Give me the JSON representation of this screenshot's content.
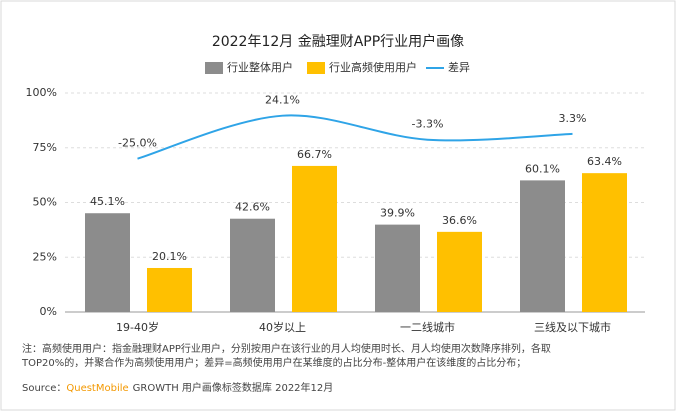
{
  "chart_data": {
    "type": "bar",
    "title": "2022年12月 金融理财APP行业用户画像",
    "categories": [
      "19-40岁",
      "40岁以上",
      "一二线城市",
      "三线及以下城市"
    ],
    "series": [
      {
        "name": "行业整体用户",
        "color": "#8c8c8c",
        "values": [
          45.1,
          42.6,
          39.9,
          60.1
        ],
        "value_labels": [
          "45.1%",
          "42.6%",
          "39.9%",
          "60.1%"
        ]
      },
      {
        "name": "行业高频使用用户",
        "color": "#ffc000",
        "values": [
          20.1,
          66.7,
          36.6,
          63.4
        ],
        "value_labels": [
          "20.1%",
          "66.7%",
          "36.6%",
          "63.4%"
        ]
      },
      {
        "name": "差异",
        "type": "line",
        "axis": "y2",
        "color": "#2fa4e7",
        "values": [
          -25,
          24.1,
          -3.3,
          3.3
        ],
        "value_labels": [
          "-25.0%",
          "24.1%",
          "-3.3%",
          "3.3%"
        ]
      }
    ],
    "ylim": [
      0,
      100
    ],
    "yticks": [
      {
        "value": 0,
        "label": "0%"
      },
      {
        "value": 25,
        "label": "25%"
      },
      {
        "value": 50,
        "label": "50%"
      },
      {
        "value": 75,
        "label": "75%"
      },
      {
        "value": 100,
        "label": "100%"
      }
    ],
    "y2lim": [
      -200,
      50
    ],
    "grid": true,
    "legend": "top",
    "notes": [
      "注：高频使用用户：指金融理财APP行业用户，分别按用户在该行业的月人均使用时长、月人均使用次数降序排列，各取",
      "TOP20%的，并聚合作为高频使用用户；差异=高频使用用户在某维度的占比分布-整体用户在该维度的占比分布；"
    ],
    "source": {
      "prefix": "Source：",
      "brand": "QuestMobile",
      "rest": "GROWTH 用户画像标签数据库 2022年12月"
    }
  }
}
